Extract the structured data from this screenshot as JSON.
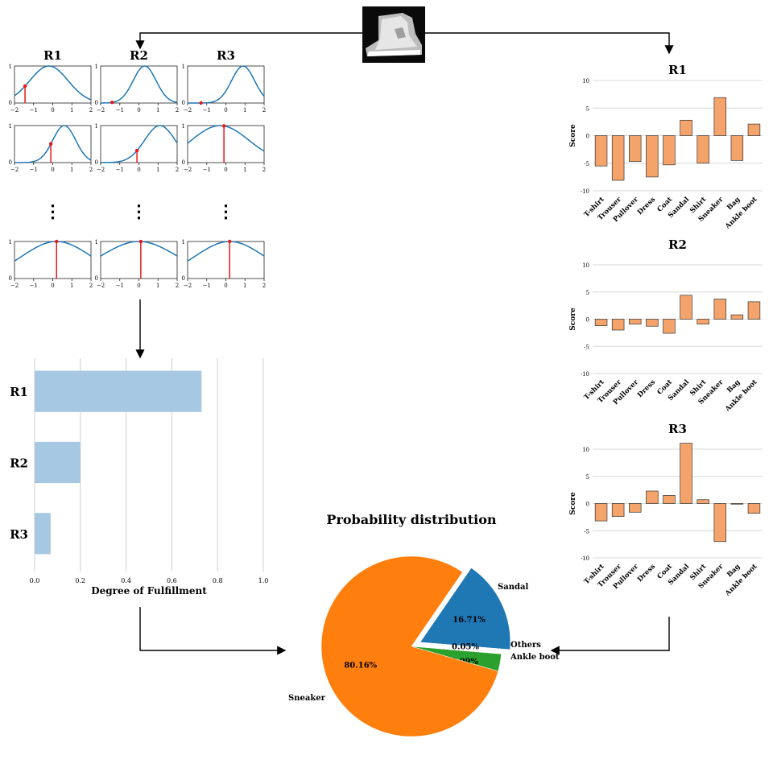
{
  "input_image_alt": "ankle boot",
  "membership_grid": {
    "col_titles": [
      "R1",
      "R2",
      "R3"
    ],
    "x_ticks": [
      "-2",
      "-1",
      "0",
      "1",
      "2"
    ],
    "y_ticks": [
      "0",
      "1"
    ],
    "ellipsis": "⋮",
    "rows": [
      [
        {
          "mu": -0.2,
          "sigma": 1.0,
          "x": -1.45
        },
        {
          "mu": 0.3,
          "sigma": 0.6,
          "x": -1.4
        },
        {
          "mu": 0.9,
          "sigma": 0.6,
          "x": -1.3
        }
      ],
      [
        {
          "mu": 0.6,
          "sigma": 0.6,
          "x": -0.1
        },
        {
          "mu": 1.1,
          "sigma": 0.8,
          "x": -0.1
        },
        {
          "mu": -0.3,
          "sigma": 1.5,
          "x": -0.1
        }
      ],
      [
        {
          "mu": 0.2,
          "sigma": 1.8,
          "x": 0.2
        },
        {
          "mu": 0.0,
          "sigma": 2.0,
          "x": 0.1
        },
        {
          "mu": 0.2,
          "sigma": 1.8,
          "x": 0.2
        }
      ]
    ]
  },
  "chart_data": [
    {
      "type": "bar",
      "orientation": "horizontal",
      "categories": [
        "R1",
        "R2",
        "R3"
      ],
      "values": [
        0.73,
        0.2,
        0.07
      ],
      "xlabel": "Degree of Fulfillment",
      "xlim": [
        0,
        1
      ],
      "xticks": [
        "0.0",
        "0.2",
        "0.4",
        "0.6",
        "0.8",
        "1.0"
      ],
      "grid": true,
      "color": "#a7c8e2"
    },
    {
      "type": "bar",
      "title": "R1",
      "ylabel": "Score",
      "categories": [
        "T-shirt",
        "Trouser",
        "Pullover",
        "Dress",
        "Coat",
        "Sandal",
        "Shirt",
        "Sneaker",
        "Bag",
        "Ankle boot"
      ],
      "values": [
        -5.5,
        -8.1,
        -4.7,
        -7.5,
        -5.3,
        2.8,
        -5.0,
        6.9,
        -4.5,
        2.1
      ],
      "ylim": [
        -10,
        10
      ],
      "yticks": [
        "10",
        "5",
        "0",
        "-5",
        "-10"
      ],
      "color": "#f4a46a"
    },
    {
      "type": "bar",
      "title": "R2",
      "ylabel": "Score",
      "categories": [
        "T-shirt",
        "Trouser",
        "Pullover",
        "Dress",
        "Coat",
        "Sandal",
        "Shirt",
        "Sneaker",
        "Bag",
        "Ankle boot"
      ],
      "values": [
        -1.2,
        -2.0,
        -0.9,
        -1.3,
        -2.6,
        4.4,
        -0.9,
        3.7,
        0.8,
        3.2
      ],
      "ylim": [
        -10,
        10
      ],
      "yticks": [
        "10",
        "5",
        "0",
        "-5",
        "-10"
      ],
      "color": "#f4a46a"
    },
    {
      "type": "bar",
      "title": "R3",
      "ylabel": "Score",
      "categories": [
        "T-shirt",
        "Trouser",
        "Pullover",
        "Dress",
        "Coat",
        "Sandal",
        "Shirt",
        "Sneaker",
        "Bag",
        "Ankle boot"
      ],
      "values": [
        -3.2,
        -2.4,
        -1.6,
        2.3,
        1.5,
        11.1,
        0.7,
        -7.0,
        -0.1,
        -1.8
      ],
      "ylim": [
        -10,
        11
      ],
      "yticks": [
        "10",
        "5",
        "0",
        "-5",
        "-10"
      ],
      "color": "#f4a46a"
    },
    {
      "type": "pie",
      "title": "Probability distribution",
      "slices": [
        {
          "label": "Sandal",
          "value": 16.71,
          "pct_label": "16.71%",
          "color": "#1f77b4",
          "explode": true
        },
        {
          "label": "Others",
          "value": 0.05,
          "pct_label": "0.05%",
          "color": "#d62728",
          "explode": false
        },
        {
          "label": "Ankle boot",
          "value": 3.09,
          "pct_label": "3.09%",
          "color": "#2ca02c",
          "explode": false
        },
        {
          "label": "Sneaker",
          "value": 80.16,
          "pct_label": "80.16%",
          "color": "#ff7f0e",
          "explode": false
        }
      ]
    }
  ]
}
